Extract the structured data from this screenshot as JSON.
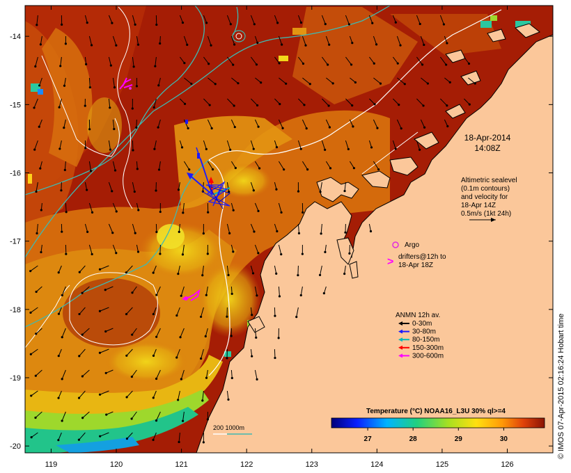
{
  "chart_data": {
    "type": "map",
    "x_ticks": [
      "119",
      "120",
      "121",
      "122",
      "123",
      "124",
      "125",
      "126"
    ],
    "y_ticks": [
      "-14",
      "-15",
      "-16",
      "-17",
      "-18",
      "-19",
      "-20"
    ],
    "xlim": [
      118.6,
      126.7
    ],
    "ylim": [
      -20.1,
      -13.55
    ],
    "colorbar": {
      "title": "Temperature (°C) NOAA16_L3U 30% ql>=4",
      "range": [
        26.2,
        30.9
      ],
      "ticks": [
        "27",
        "28",
        "29",
        "30"
      ]
    },
    "timestamp": {
      "date": "18-Apr-2014",
      "time": "14:08Z"
    },
    "altimetry_note": [
      "Altimetric sealevel",
      "(0.1m contours)",
      "and velocity for",
      "18-Apr 14Z",
      "0.5m/s (1kt 24h)"
    ],
    "argo": {
      "label": "Argo"
    },
    "drifters": [
      "drifters@12h to",
      "18-Apr 18Z"
    ],
    "anmn": {
      "title": "ANMN 12h av.",
      "items": [
        {
          "label": "0-30m",
          "color": "#000000"
        },
        {
          "label": "30-80m",
          "color": "#1a1aff"
        },
        {
          "label": "80-150m",
          "color": "#00b8b8"
        },
        {
          "label": "150-300m",
          "color": "#ff0000"
        },
        {
          "label": "300-600m",
          "color": "#ff00ff"
        }
      ]
    },
    "depth_legend": "200  1000m",
    "credit": "© IMOS 07-Apr-2015 02:16:24 Hobart time"
  },
  "colors": {
    "land": "#fbc79a",
    "ocean_warm": "#a51d05",
    "ocean_mid": "#d2630c",
    "contour_200m": "#ffffff",
    "contour_1000m": "#3fb9b1",
    "argo": "#e02be0",
    "drifter": "#ff00ff"
  }
}
